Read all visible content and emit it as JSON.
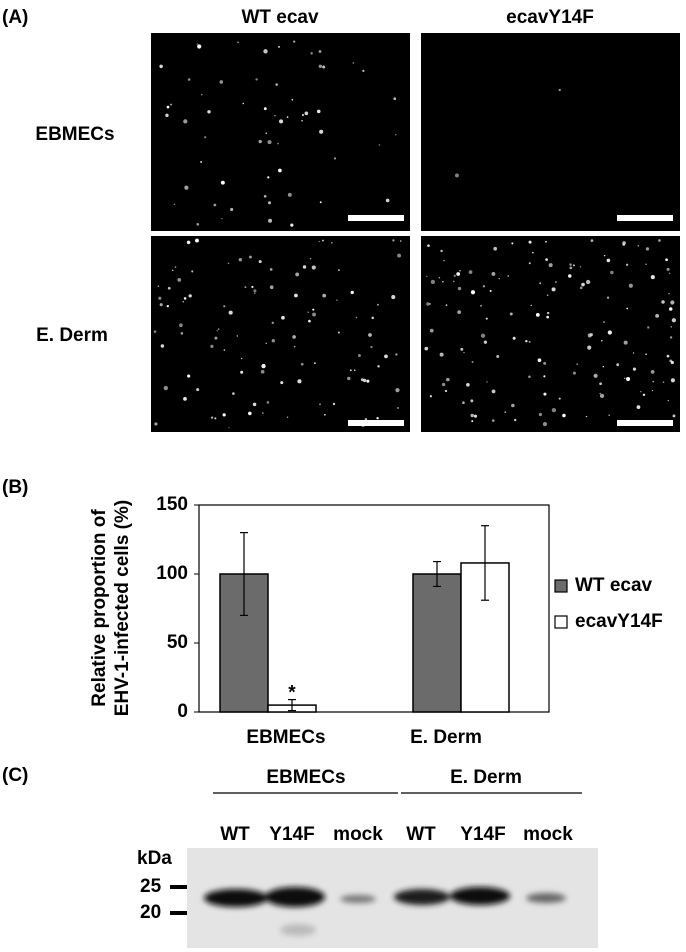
{
  "panel_a": {
    "label": "(A)",
    "columns": [
      "WT ecav",
      "ecavY14F"
    ],
    "rows": [
      "EBMECs",
      "E. Derm"
    ]
  },
  "chart_data": {
    "type": "bar",
    "panel_label": "(B)",
    "ylabel": [
      "Relative proportion of",
      "EHV-1-infected cells (%)"
    ],
    "categories": [
      "EBMECs",
      "E. Derm"
    ],
    "series": [
      {
        "name": "WT ecav",
        "color": "#6b6b6b",
        "values": [
          100,
          100
        ],
        "errors": [
          30,
          9
        ]
      },
      {
        "name": "ecavY14F",
        "color": "#ffffff",
        "values": [
          5,
          108
        ],
        "errors": [
          4,
          27
        ]
      }
    ],
    "ylim": [
      0,
      150
    ],
    "yticks": [
      0,
      50,
      100,
      150
    ],
    "grid": false,
    "legend": "right",
    "annotations": [
      {
        "text": "*",
        "series": 1,
        "category": 0
      }
    ]
  },
  "panel_c": {
    "label": "(C)",
    "groups": [
      "EBMECs",
      "E. Derm"
    ],
    "lanes": [
      "WT",
      "Y14F",
      "mock",
      "WT",
      "Y14F",
      "mock"
    ],
    "unit": "kDa",
    "markers": [
      "25",
      "20"
    ]
  }
}
